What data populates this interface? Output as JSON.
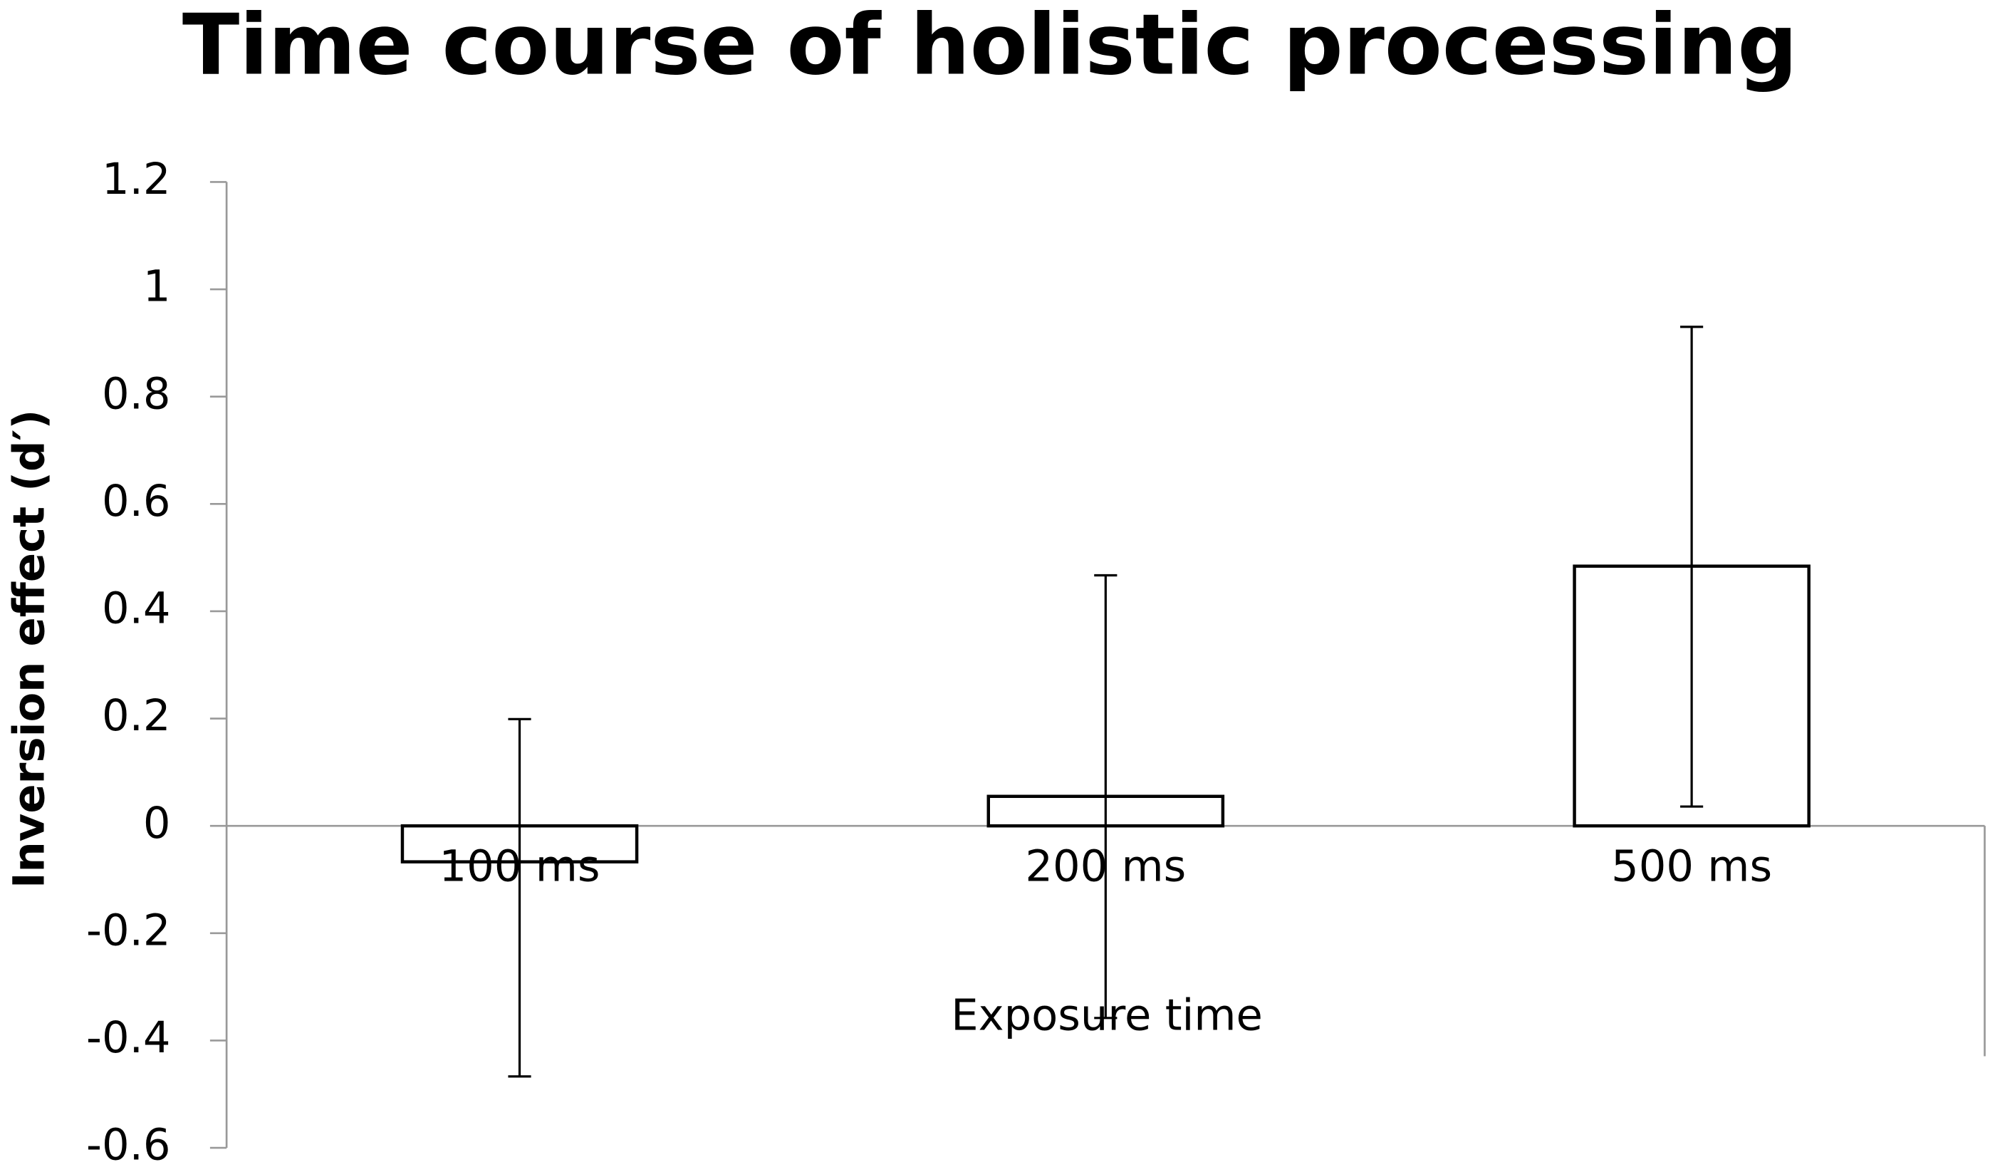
{
  "chart_data": {
    "type": "bar",
    "title": "Time course of holistic processing",
    "x_label": "Exposure time",
    "y_label": "Inversion effect (d′)",
    "categories": [
      "100 ms",
      "200 ms",
      "500 ms"
    ],
    "values": [
      -0.067,
      0.055,
      0.484
    ],
    "error_low": [
      -0.467,
      -0.358,
      0.036
    ],
    "error_high": [
      0.199,
      0.467,
      0.93
    ],
    "color": "#ffffff",
    "edge_color": "#000000",
    "ylim": [
      -0.6,
      1.2
    ],
    "yticks": [
      -0.6,
      -0.4,
      -0.2,
      0,
      0.2,
      0.4,
      0.6,
      0.8,
      1,
      1.2
    ],
    "grid": false
  }
}
